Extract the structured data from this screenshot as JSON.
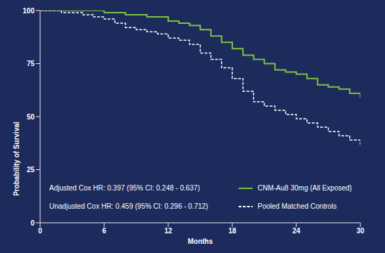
{
  "chart_data": {
    "type": "line",
    "x_label": "Months",
    "y_label": "Probability of Survival",
    "x": [
      0,
      1,
      2,
      3,
      4,
      5,
      6,
      7,
      8,
      9,
      10,
      11,
      12,
      13,
      14,
      15,
      16,
      17,
      18,
      19,
      20,
      21,
      22,
      23,
      24,
      25,
      26,
      27,
      28,
      29,
      30
    ],
    "series": [
      {
        "name": "CNM-Au8 30mg (All Exposed)",
        "color": "#7dc242",
        "type": "step",
        "line_style": "solid",
        "values": [
          100,
          100,
          100,
          100,
          100,
          100,
          99,
          99,
          98,
          98,
          97,
          97,
          95,
          94,
          93,
          91,
          88,
          85,
          82,
          79,
          77,
          75,
          72,
          71,
          70,
          68,
          65,
          64,
          63,
          61,
          59
        ]
      },
      {
        "name": "Pooled Matched Controls",
        "color": "#ffffff",
        "type": "step",
        "line_style": "dashed",
        "values": [
          100,
          100,
          99,
          99,
          98,
          97,
          96,
          94,
          92,
          91,
          90,
          89,
          87,
          86,
          84,
          80,
          77,
          73,
          68,
          62,
          57,
          55,
          53,
          51,
          49,
          47,
          45,
          43,
          41,
          39,
          36
        ]
      }
    ],
    "xlim": [
      0,
      30
    ],
    "xticks": [
      0,
      6,
      12,
      18,
      24,
      30
    ],
    "ylim": [
      0,
      100
    ],
    "yticks": [
      0,
      25,
      50,
      75,
      100
    ],
    "grid": false,
    "legend": "lower right",
    "annotations": [
      "Adjusted Cox HR: 0.397 (95% CI: 0.248 - 0.637)",
      "Unadjusted Cox HR: 0.459 (95% CI: 0.296 - 0.712)"
    ]
  }
}
